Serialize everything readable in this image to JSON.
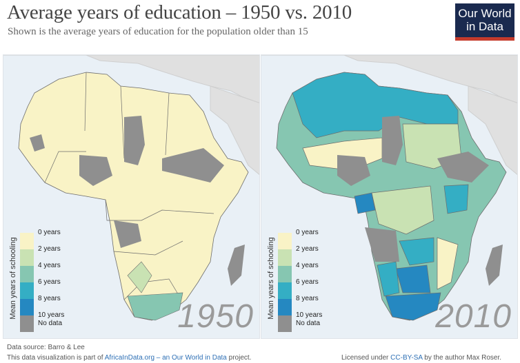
{
  "header": {
    "title": "Average years of education – 1950 vs. 2010",
    "subtitle": "Shown is the average years of education for the population older than 15"
  },
  "logo": {
    "line1": "Our World",
    "line2": "in Data",
    "bg": "#1a2a4f",
    "accent": "#c53b2c"
  },
  "maps": [
    {
      "year": "1950"
    },
    {
      "year": "2010"
    }
  ],
  "legend": {
    "title": "Mean years of schooling",
    "labels": [
      "0 years",
      "2 years",
      "4 years",
      "6 years",
      "8 years",
      "10 years",
      "No data"
    ],
    "colors": [
      "#f9f3c6",
      "#c9e2b3",
      "#86c6b1",
      "#34aec4",
      "#2588c1",
      "#8f8f8f"
    ],
    "nodata_color": "#8f8f8f"
  },
  "colors": {
    "ocean": "#e9f0f6",
    "other_land": "#e0e0e0",
    "border": "#6c6c6c"
  },
  "footer": {
    "source": "Data source: Barro & Lee",
    "part_prefix": "This data visualization is part of ",
    "part_link": "AfricaInData.org – an Our World in Data",
    "part_suffix": " project.",
    "license_prefix": "Licensed under ",
    "license_link": "CC-BY-SA",
    "license_suffix": " by the author Max Roser."
  }
}
